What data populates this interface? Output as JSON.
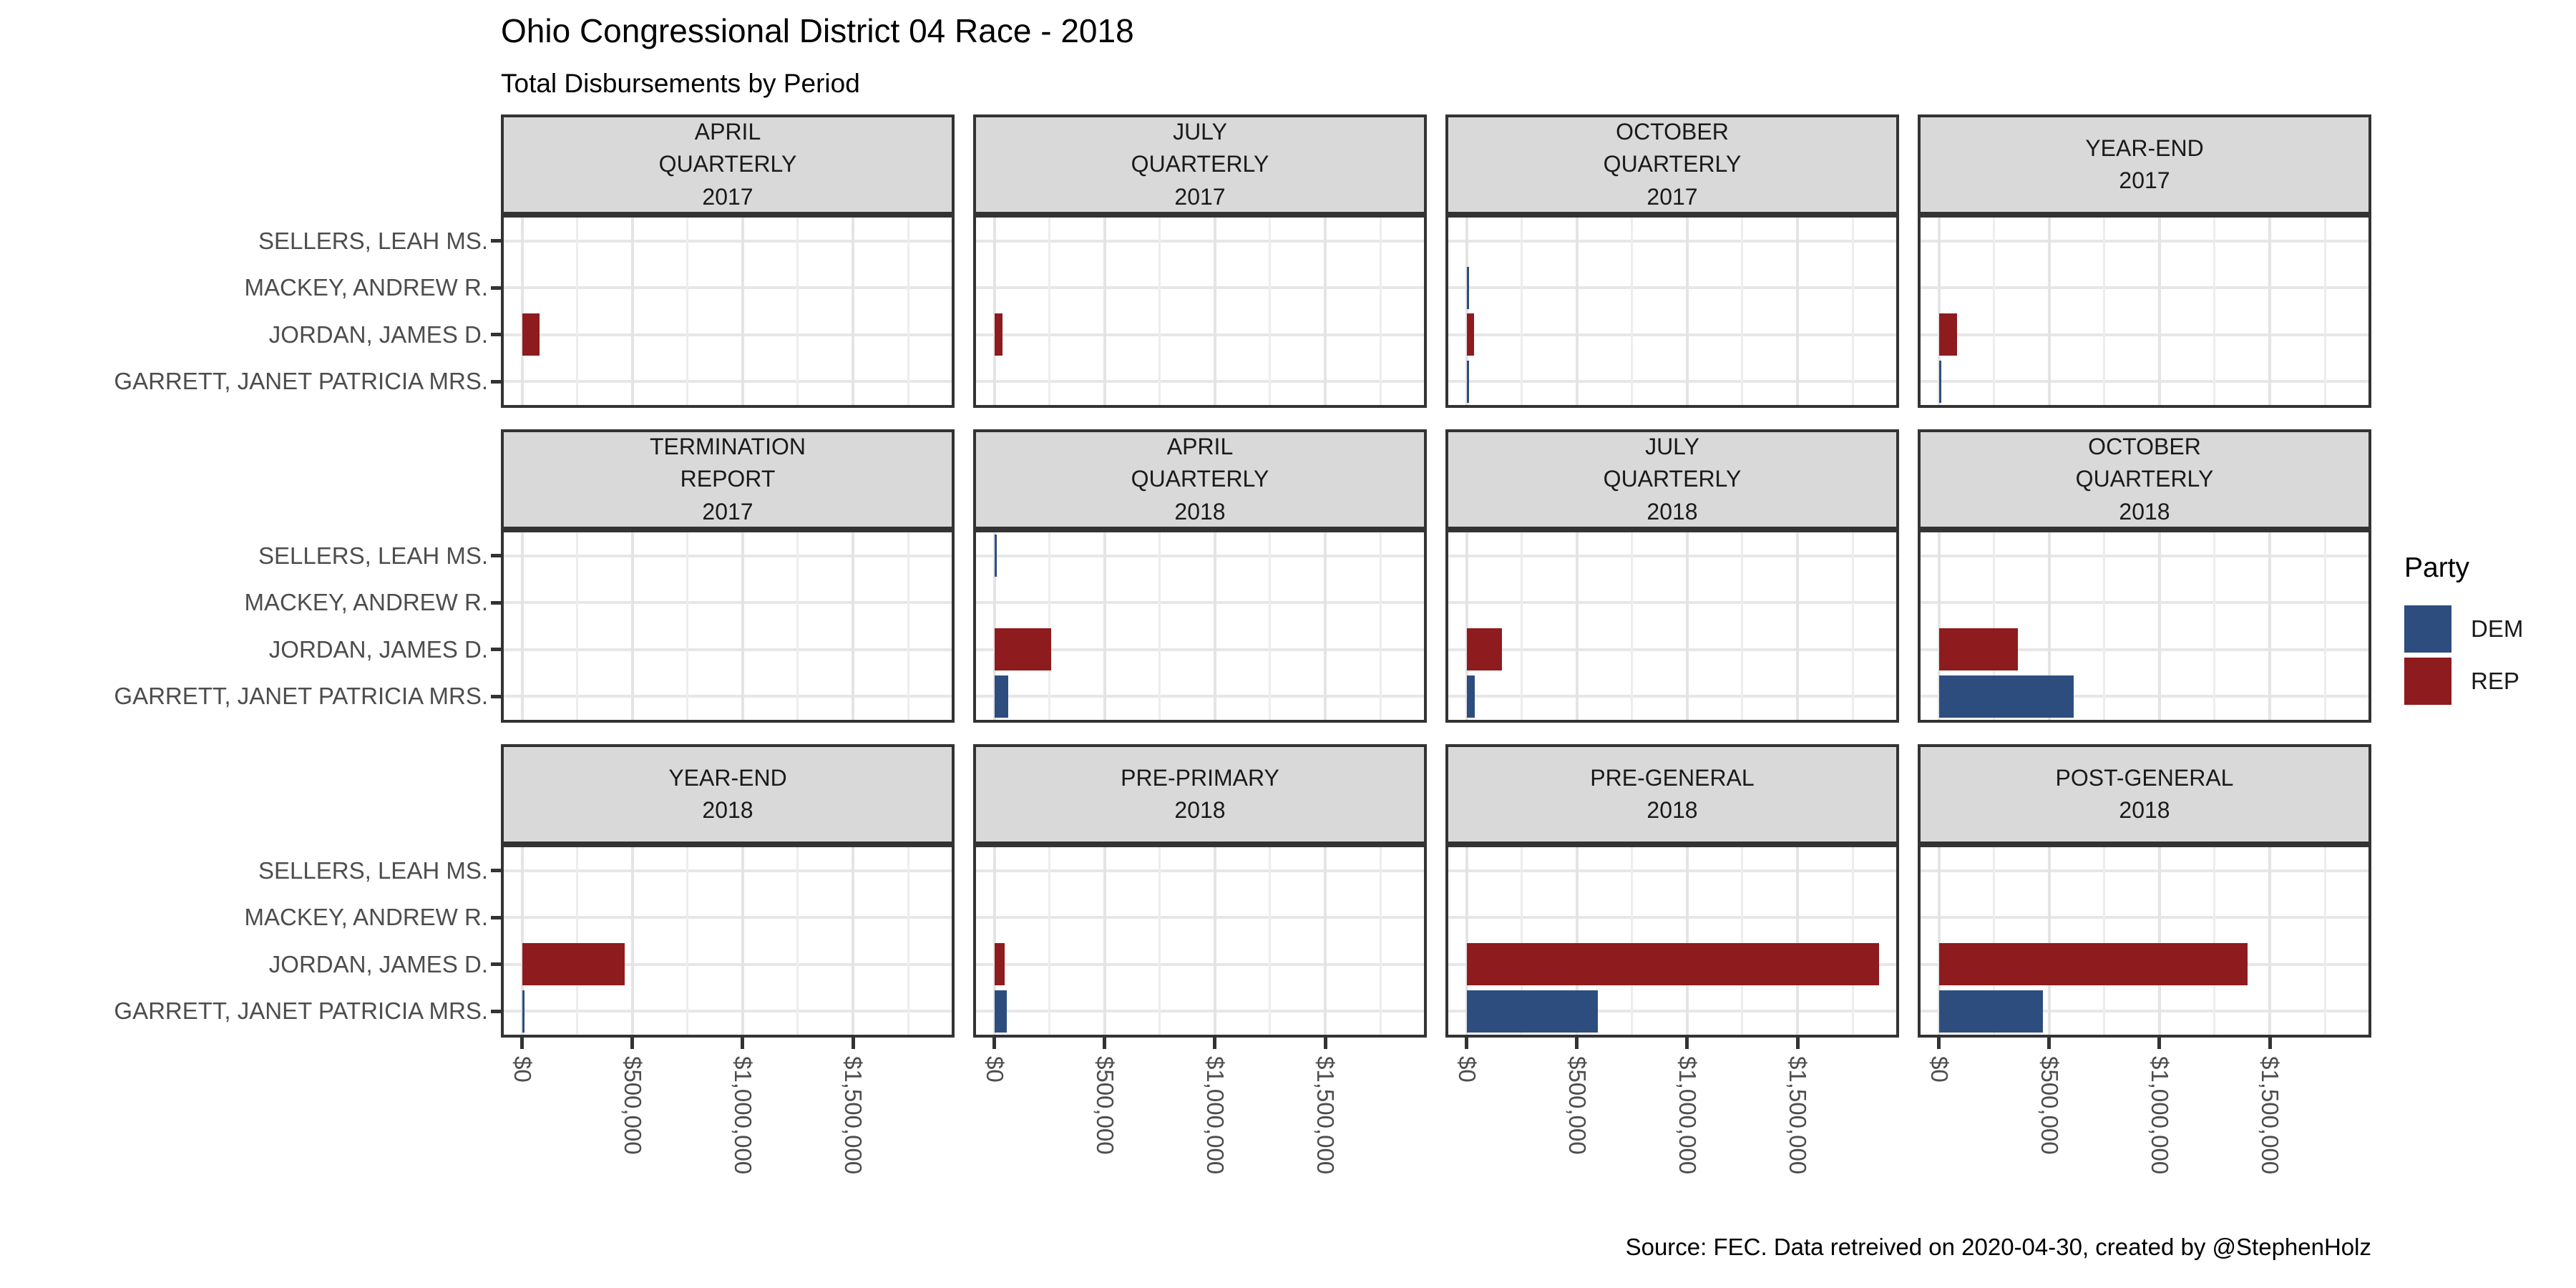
{
  "title": "Ohio Congressional District 04 Race - 2018",
  "subtitle": "Total Disbursements by Period",
  "caption": "Source: FEC. Data retreived on 2020-04-30, created by @StephenHolz",
  "legend": {
    "title": "Party",
    "items": [
      {
        "label": "DEM",
        "color": "#2D4D7F"
      },
      {
        "label": "REP",
        "color": "#8E1B1D"
      }
    ]
  },
  "chart_data": {
    "type": "bar",
    "orientation": "horizontal",
    "title": "Ohio Congressional District 04 Race - 2018",
    "subtitle": "Total Disbursements by Period",
    "facet_grid": {
      "rows": 3,
      "cols": 4
    },
    "candidates": [
      "SELLERS, LEAH MS.",
      "MACKEY, ANDREW R.",
      "JORDAN, JAMES D.",
      "GARRETT, JANET PATRICIA MRS."
    ],
    "party_colors": {
      "DEM": "#2D4D7F",
      "REP": "#8E1B1D"
    },
    "x_axis": {
      "tick_values": [
        0,
        500000,
        1000000,
        1500000
      ],
      "tick_labels": [
        "$0",
        "$500,000",
        "$1,000,000",
        "$1,500,000"
      ],
      "minor_tick_values": [
        250000,
        750000,
        1250000,
        1750000
      ],
      "approx_max": 1950000,
      "grid": true
    },
    "facets": [
      {
        "label": "APRIL QUARTERLY 2017",
        "label_lines": [
          "APRIL",
          "QUARTERLY",
          "2017"
        ],
        "bars": [
          {
            "candidate": "JORDAN, JAMES D.",
            "party": "REP",
            "value": 80000
          }
        ]
      },
      {
        "label": "JULY QUARTERLY 2017",
        "label_lines": [
          "JULY",
          "QUARTERLY",
          "2017"
        ],
        "bars": [
          {
            "candidate": "JORDAN, JAMES D.",
            "party": "REP",
            "value": 36000
          }
        ]
      },
      {
        "label": "OCTOBER QUARTERLY 2017",
        "label_lines": [
          "OCTOBER",
          "QUARTERLY",
          "2017"
        ],
        "bars": [
          {
            "candidate": "MACKEY, ANDREW R.",
            "party": "DEM",
            "value": 2000
          },
          {
            "candidate": "JORDAN, JAMES D.",
            "party": "REP",
            "value": 33000
          },
          {
            "candidate": "GARRETT, JANET PATRICIA MRS.",
            "party": "DEM",
            "value": 1500
          }
        ]
      },
      {
        "label": "YEAR-END 2017",
        "label_lines": [
          "YEAR-END",
          "2017"
        ],
        "bars": [
          {
            "candidate": "JORDAN, JAMES D.",
            "party": "REP",
            "value": 83000
          },
          {
            "candidate": "GARRETT, JANET PATRICIA MRS.",
            "party": "DEM",
            "value": 1500
          }
        ]
      },
      {
        "label": "TERMINATION REPORT 2017",
        "label_lines": [
          "TERMINATION",
          "REPORT",
          "2017"
        ],
        "bars": []
      },
      {
        "label": "APRIL QUARTERLY 2018",
        "label_lines": [
          "APRIL",
          "QUARTERLY",
          "2018"
        ],
        "bars": [
          {
            "candidate": "SELLERS, LEAH MS.",
            "party": "DEM",
            "value": 2000
          },
          {
            "candidate": "JORDAN, JAMES D.",
            "party": "REP",
            "value": 258000
          },
          {
            "candidate": "GARRETT, JANET PATRICIA MRS.",
            "party": "DEM",
            "value": 63000
          }
        ]
      },
      {
        "label": "JULY QUARTERLY 2018",
        "label_lines": [
          "JULY",
          "QUARTERLY",
          "2018"
        ],
        "bars": [
          {
            "candidate": "JORDAN, JAMES D.",
            "party": "REP",
            "value": 160000
          },
          {
            "candidate": "GARRETT, JANET PATRICIA MRS.",
            "party": "DEM",
            "value": 36000
          }
        ]
      },
      {
        "label": "OCTOBER QUARTERLY 2018",
        "label_lines": [
          "OCTOBER",
          "QUARTERLY",
          "2018"
        ],
        "bars": [
          {
            "candidate": "JORDAN, JAMES D.",
            "party": "REP",
            "value": 357000
          },
          {
            "candidate": "GARRETT, JANET PATRICIA MRS.",
            "party": "DEM",
            "value": 610000
          }
        ]
      },
      {
        "label": "YEAR-END 2018",
        "label_lines": [
          "YEAR-END",
          "2018"
        ],
        "bars": [
          {
            "candidate": "JORDAN, JAMES D.",
            "party": "REP",
            "value": 466000
          },
          {
            "candidate": "GARRETT, JANET PATRICIA MRS.",
            "party": "DEM",
            "value": 1500
          }
        ]
      },
      {
        "label": "PRE-PRIMARY 2018",
        "label_lines": [
          "PRE-PRIMARY",
          "2018"
        ],
        "bars": [
          {
            "candidate": "JORDAN, JAMES D.",
            "party": "REP",
            "value": 48000
          },
          {
            "candidate": "GARRETT, JANET PATRICIA MRS.",
            "party": "DEM",
            "value": 56000
          }
        ]
      },
      {
        "label": "PRE-GENERAL 2018",
        "label_lines": [
          "PRE-GENERAL",
          "2018"
        ],
        "bars": [
          {
            "candidate": "JORDAN, JAMES D.",
            "party": "REP",
            "value": 1870000
          },
          {
            "candidate": "GARRETT, JANET PATRICIA MRS.",
            "party": "DEM",
            "value": 595000
          }
        ]
      },
      {
        "label": "POST-GENERAL 2018",
        "label_lines": [
          "POST-GENERAL",
          "2018"
        ],
        "bars": [
          {
            "candidate": "JORDAN, JAMES D.",
            "party": "REP",
            "value": 1400000
          },
          {
            "candidate": "GARRETT, JANET PATRICIA MRS.",
            "party": "DEM",
            "value": 473000
          }
        ]
      }
    ]
  }
}
